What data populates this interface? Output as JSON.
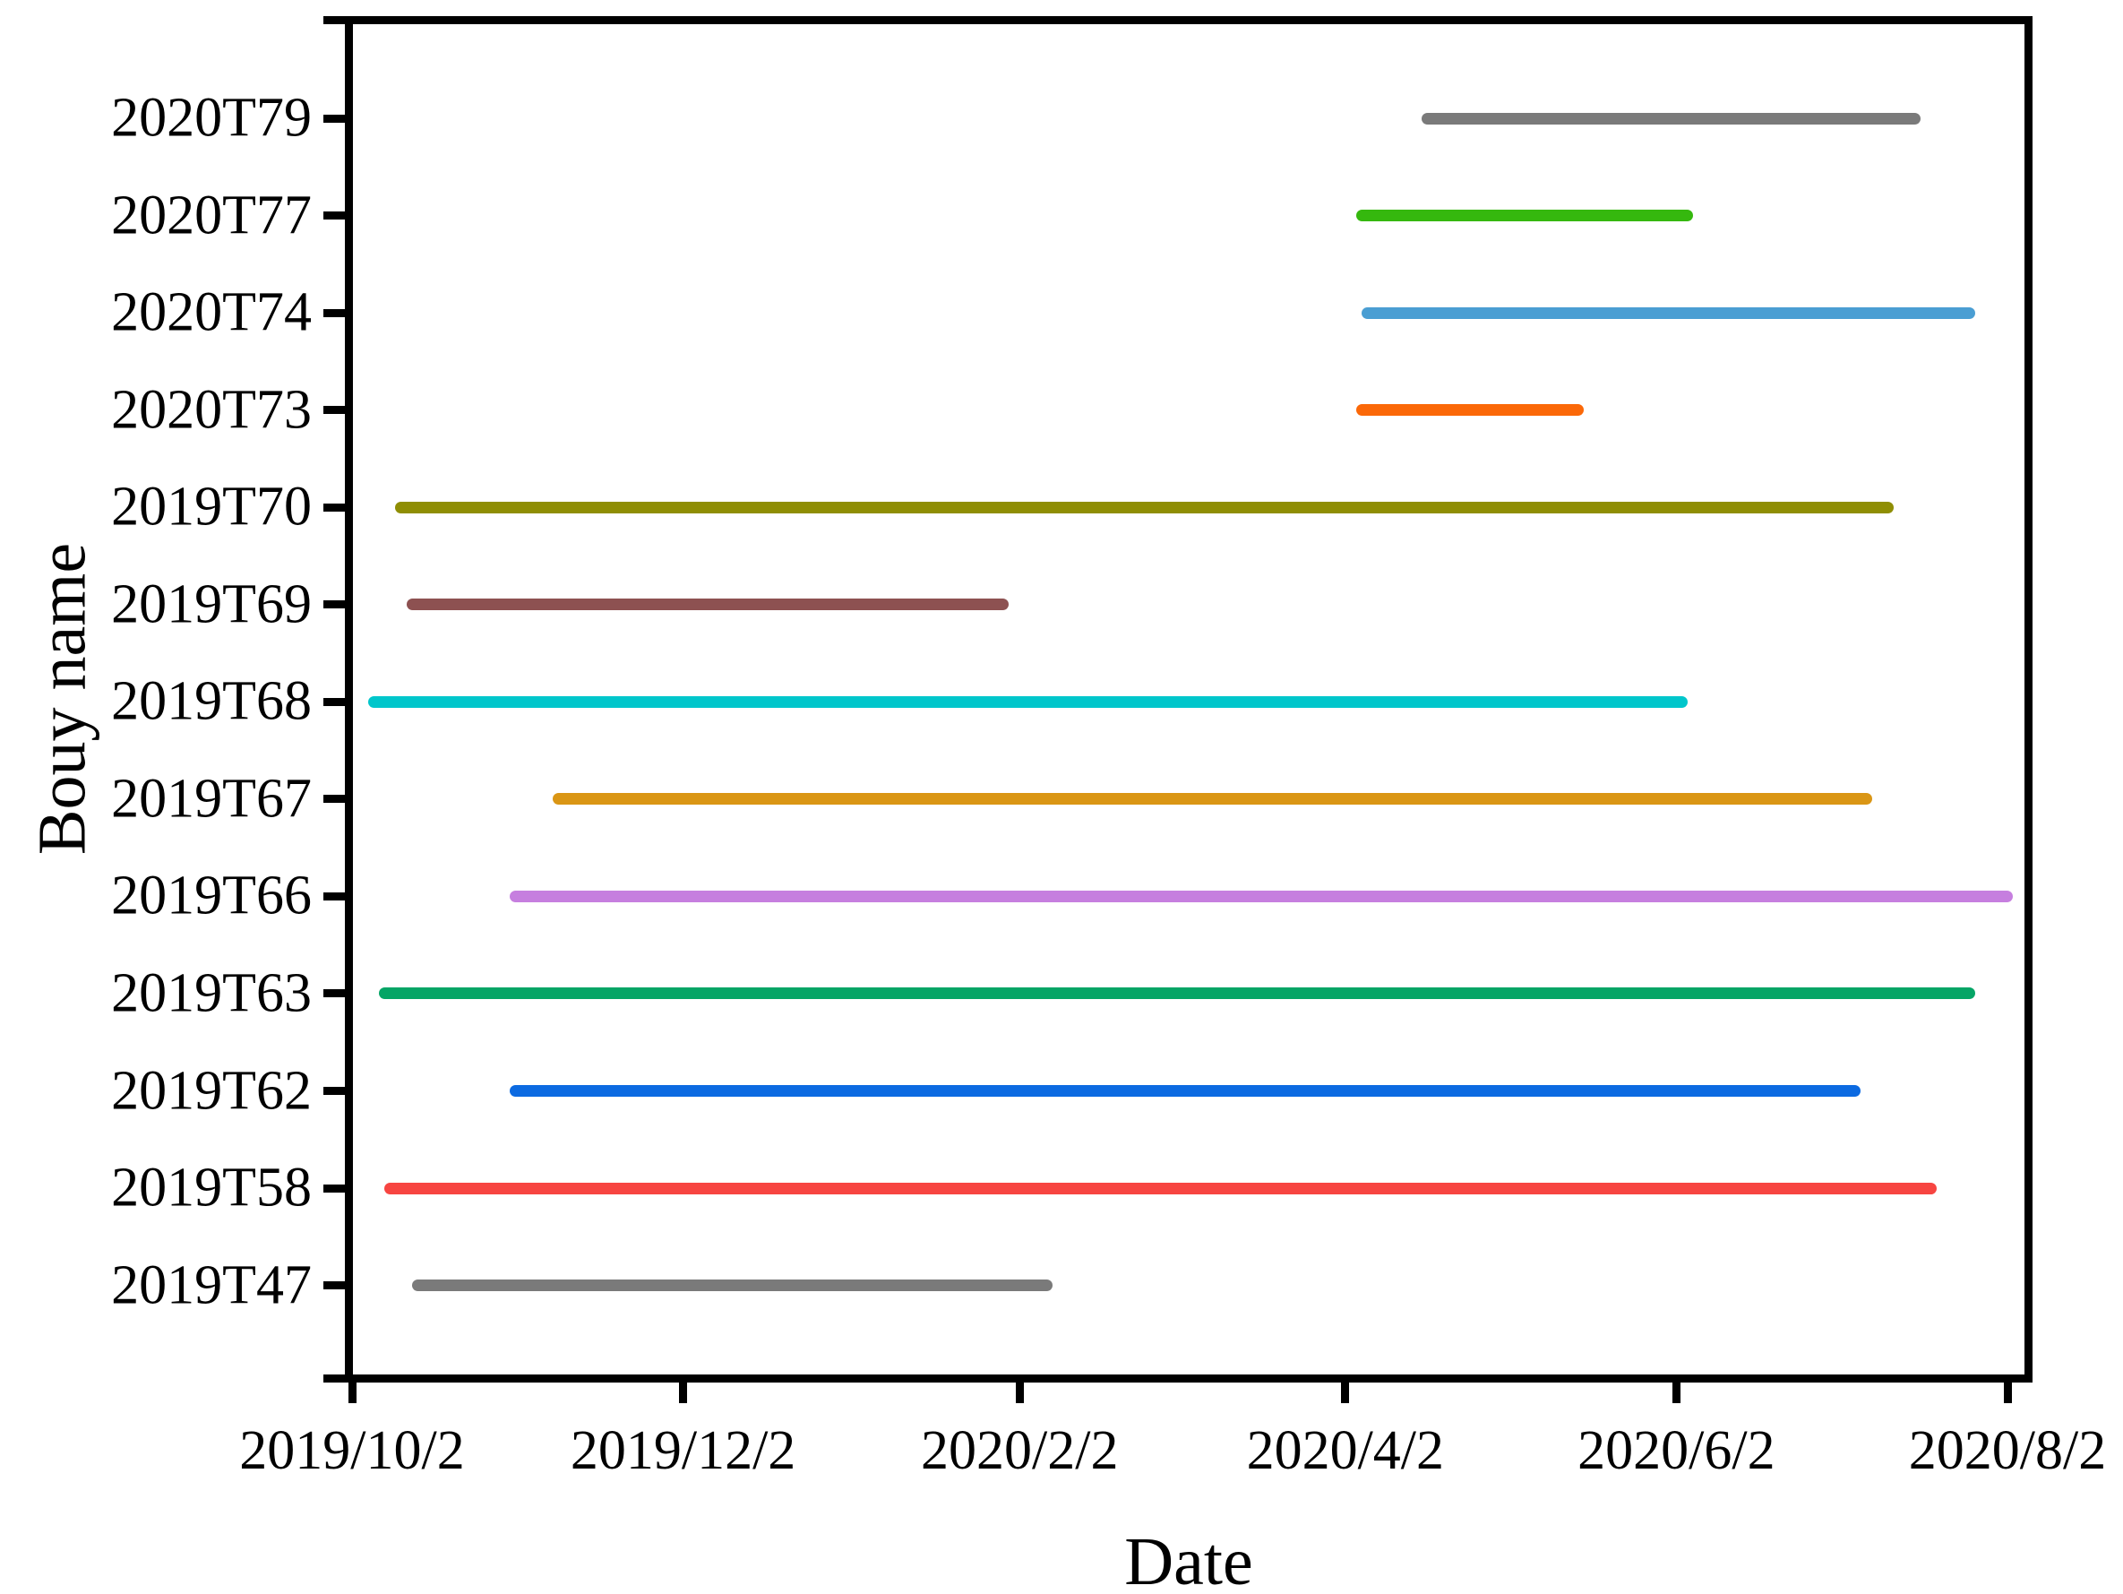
{
  "figure": {
    "background": "#ffffff",
    "axis_color": "#000000",
    "xlabel": "Date",
    "ylabel": "Bouy name"
  },
  "chart_data": {
    "type": "gantt-line",
    "title": "",
    "xlabel": "Date",
    "ylabel": "Bouy name",
    "grid": false,
    "legend": false,
    "x_range": [
      "2019/10/2",
      "2020/8/2"
    ],
    "x_tick_labels": [
      "2019/10/2",
      "2019/12/2",
      "2020/2/2",
      "2020/4/2",
      "2020/6/2",
      "2020/8/2"
    ],
    "categories": [
      "2020T79",
      "2020T77",
      "2020T74",
      "2020T73",
      "2019T70",
      "2019T69",
      "2019T68",
      "2019T67",
      "2019T66",
      "2019T63",
      "2019T62",
      "2019T58",
      "2019T47"
    ],
    "series": [
      {
        "name": "2020T79",
        "start": "2020/4/16",
        "end": "2020/7/17",
        "color": "#7a7a7a"
      },
      {
        "name": "2020T77",
        "start": "2020/4/4",
        "end": "2020/6/5",
        "color": "#35b80e"
      },
      {
        "name": "2020T74",
        "start": "2020/4/5",
        "end": "2020/7/27",
        "color": "#4a9ed3"
      },
      {
        "name": "2020T73",
        "start": "2020/4/4",
        "end": "2020/5/16",
        "color": "#fb6808"
      },
      {
        "name": "2019T70",
        "start": "2019/10/10",
        "end": "2020/7/12",
        "color": "#8f8e04"
      },
      {
        "name": "2019T69",
        "start": "2019/10/12",
        "end": "2020/1/31",
        "color": "#8d5151"
      },
      {
        "name": "2019T68",
        "start": "2019/10/5",
        "end": "2020/6/4",
        "color": "#00c6cb"
      },
      {
        "name": "2019T67",
        "start": "2019/11/8",
        "end": "2020/7/8",
        "color": "#da9615"
      },
      {
        "name": "2019T66",
        "start": "2019/10/31",
        "end": "2020/8/3",
        "color": "#c67fdf"
      },
      {
        "name": "2019T63",
        "start": "2019/10/7",
        "end": "2020/7/27",
        "color": "#05a566"
      },
      {
        "name": "2019T62",
        "start": "2019/10/31",
        "end": "2020/7/6",
        "color": "#0c6ae1"
      },
      {
        "name": "2019T58",
        "start": "2019/10/8",
        "end": "2020/7/20",
        "color": "#f74541"
      },
      {
        "name": "2019T47",
        "start": "2019/10/13",
        "end": "2020/2/8",
        "color": "#7a7a7a"
      }
    ]
  }
}
